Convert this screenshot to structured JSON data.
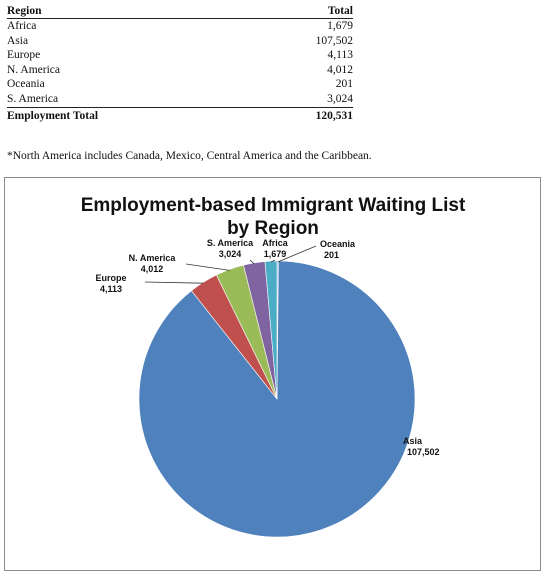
{
  "table": {
    "header": {
      "region": "Region",
      "total": "Total"
    },
    "rows": [
      {
        "region": "Africa",
        "total": "1,679"
      },
      {
        "region": "Asia",
        "total": "107,502"
      },
      {
        "region": "Europe",
        "total": "4,113"
      },
      {
        "region": "N. America",
        "total": "4,012"
      },
      {
        "region": "Oceania",
        "total": "201"
      },
      {
        "region": "S. America",
        "total": "3,024"
      }
    ],
    "total_row": {
      "label": "Employment Total",
      "value": "120,531"
    }
  },
  "footnote": "*North America includes Canada, Mexico, Central America and the Caribbean.",
  "chart_data": {
    "type": "pie",
    "title": "Employment-based Immigrant Waiting List by Region",
    "title_lines": [
      "Employment-based Immigrant Waiting List",
      "by Region"
    ],
    "slices": [
      {
        "name": "Oceania",
        "value": 201,
        "label": "201",
        "color": "#9CC3E4"
      },
      {
        "name": "Asia",
        "value": 107502,
        "label": "107,502",
        "color": "#4F81BD"
      },
      {
        "name": "Europe",
        "value": 4113,
        "label": "4,113",
        "color": "#C0504D"
      },
      {
        "name": "N. America",
        "value": 4012,
        "label": "4,012",
        "color": "#9BBB59"
      },
      {
        "name": "S. America",
        "value": 3024,
        "label": "3,024",
        "color": "#8064A2"
      },
      {
        "name": "Africa",
        "value": 1679,
        "label": "1,679",
        "color": "#4BACC6"
      }
    ]
  }
}
